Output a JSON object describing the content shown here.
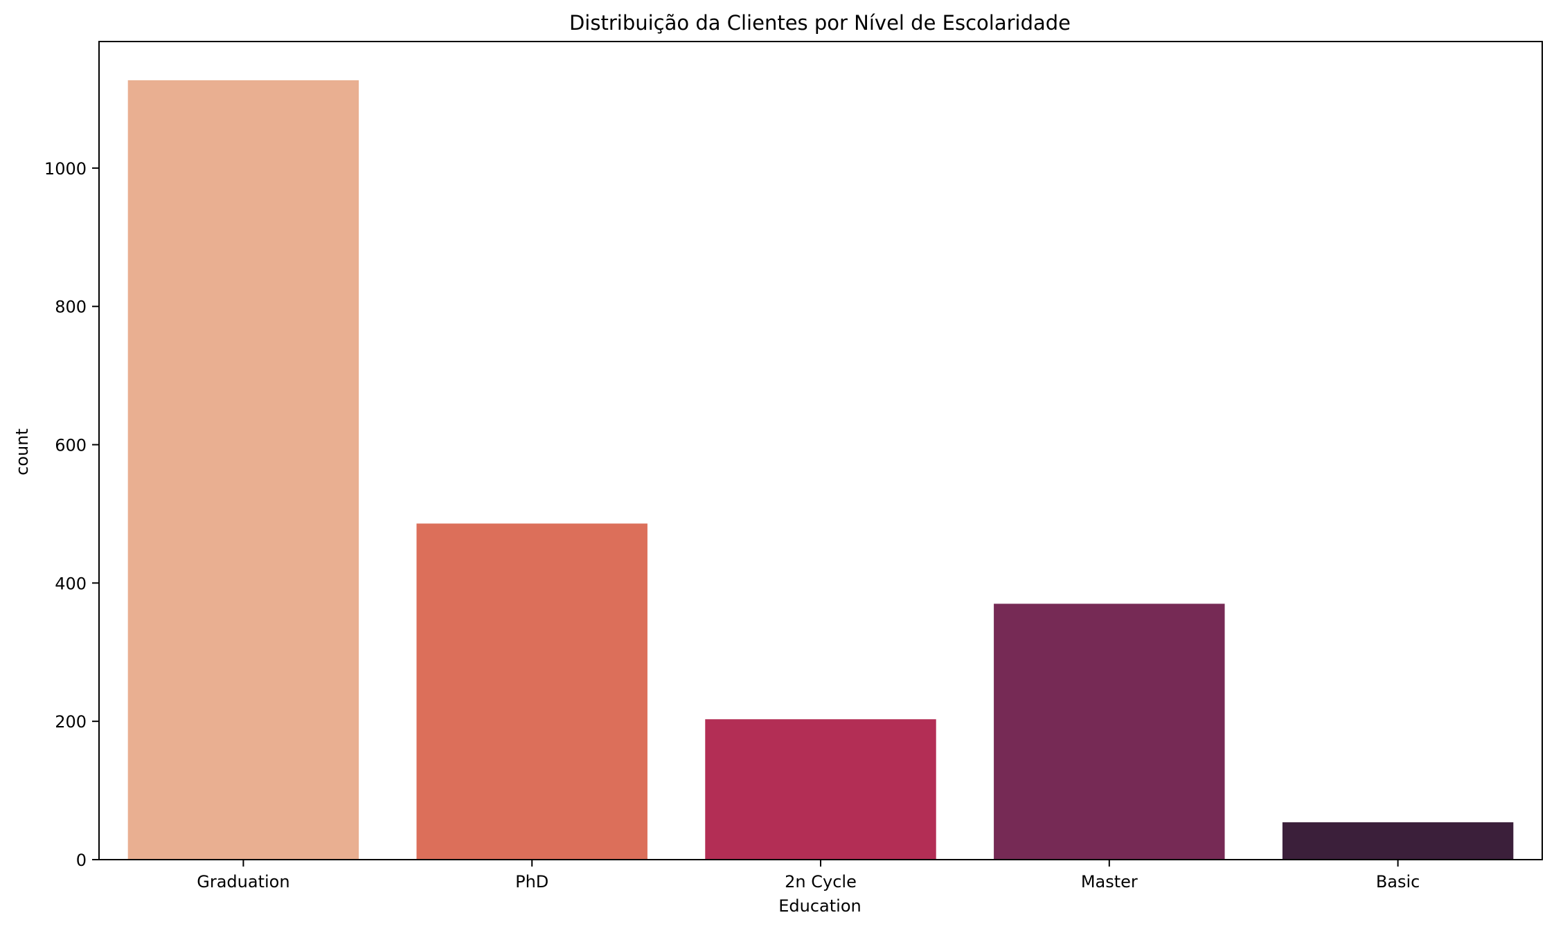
{
  "chart_data": {
    "type": "bar",
    "title": "Distribuição da Clientes por Nível de Escolaridade",
    "xlabel": "Education",
    "ylabel": "count",
    "categories": [
      "Graduation",
      "PhD",
      "2n Cycle",
      "Master",
      "Basic"
    ],
    "values": [
      1127,
      486,
      203,
      370,
      54
    ],
    "colors": [
      "#e9af91",
      "#dc6f5a",
      "#b32e55",
      "#762a55",
      "#3b1f3a"
    ],
    "yticks": [
      "0",
      "200",
      "400",
      "600",
      "800",
      "1000"
    ],
    "ylim": [
      0,
      1183
    ],
    "grid": false,
    "legend": "none"
  }
}
